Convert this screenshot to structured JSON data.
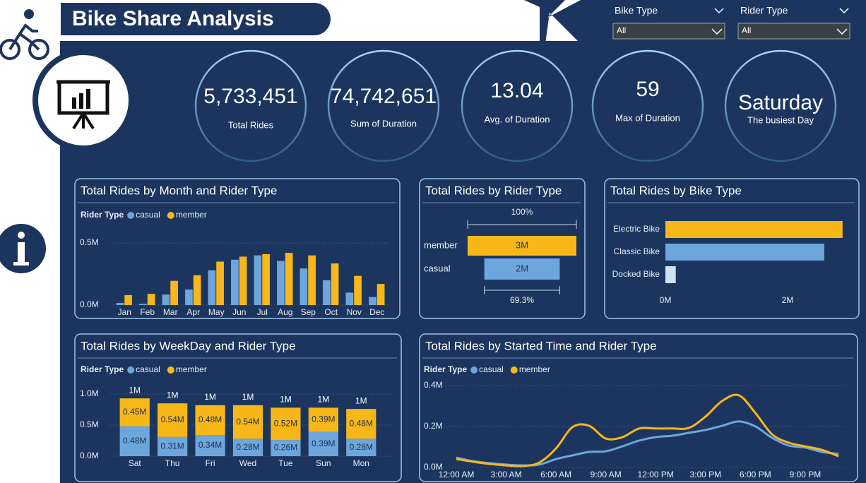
{
  "header": {
    "title": "Bike Share Analysis"
  },
  "filters": [
    {
      "label": "Bike Type",
      "value": "All"
    },
    {
      "label": "Rider Type",
      "value": "All"
    }
  ],
  "kpis": [
    {
      "value": "5,733,451",
      "label": "Total Rides"
    },
    {
      "value": "74,742,651",
      "label": "Sum of Duration"
    },
    {
      "value": "13.04",
      "label": "Avg. of Duration"
    },
    {
      "value": "59",
      "label": "Max of Duration"
    },
    {
      "value": "Saturday",
      "label": "The busiest Day"
    }
  ],
  "chart_data": [
    {
      "type": "bar",
      "title": "Total Rides by Month and Rider Type",
      "legend_title": "Rider Type",
      "categories": [
        "Jan",
        "Feb",
        "Mar",
        "Apr",
        "May",
        "Jun",
        "Jul",
        "Aug",
        "Sep",
        "Oct",
        "Nov",
        "Dec"
      ],
      "series": [
        {
          "name": "casual",
          "color": "#6ca6dc",
          "values": [
            17000,
            10000,
            85000,
            125000,
            280000,
            365000,
            400000,
            355000,
            295000,
            200000,
            100000,
            65000
          ]
        },
        {
          "name": "member",
          "color": "#f8b719",
          "values": [
            80000,
            90000,
            195000,
            240000,
            350000,
            390000,
            410000,
            420000,
            400000,
            335000,
            235000,
            170000
          ]
        }
      ],
      "ylim": [
        0,
        580000
      ],
      "yticks": [
        {
          "value": 0,
          "label": "0.0M"
        },
        {
          "value": 500000,
          "label": "0.5M"
        }
      ],
      "grid": true
    },
    {
      "type": "funnel",
      "title": "Total Rides by Rider Type",
      "categories": [
        "member",
        "casual"
      ],
      "values": [
        3386000,
        2347451
      ],
      "value_labels": [
        "3M",
        "2M"
      ],
      "colors": [
        "#f8b719",
        "#6ca6dc"
      ],
      "top_percent": {
        "value": 100,
        "label": "100%"
      },
      "bottom_percent": {
        "value": 69.3,
        "label": "69.3%"
      }
    },
    {
      "type": "barh",
      "title": "Total Rides by Bike Type",
      "categories": [
        "Electric Bike",
        "Classic Bike",
        "Docked Bike"
      ],
      "values": [
        2900000,
        2600000,
        170000
      ],
      "colors": [
        "#f8b719",
        "#6ca6dc",
        "#cfe2f3"
      ],
      "xlim": [
        0,
        3000000
      ],
      "xticks": [
        {
          "value": 0,
          "label": "0M"
        },
        {
          "value": 2000000,
          "label": "2M"
        }
      ]
    },
    {
      "type": "stacked_bar",
      "title": "Total Rides by WeekDay and Rider Type",
      "legend_title": "Rider Type",
      "categories": [
        "Sat",
        "Thu",
        "Fri",
        "Wed",
        "Tue",
        "Sun",
        "Mon"
      ],
      "series": [
        {
          "name": "casual",
          "color": "#6ca6dc",
          "values": [
            480000,
            310000,
            340000,
            280000,
            260000,
            390000,
            280000
          ],
          "value_labels": [
            "0.48M",
            "0.31M",
            "0.34M",
            "0.28M",
            "0.26M",
            "0.39M",
            "0.28M"
          ]
        },
        {
          "name": "member",
          "color": "#f8b719",
          "values": [
            450000,
            540000,
            480000,
            540000,
            520000,
            390000,
            480000
          ],
          "value_labels": [
            "0.45M",
            "0.54M",
            "0.48M",
            "0.54M",
            "0.52M",
            "0.39M",
            "0.48M"
          ]
        }
      ],
      "total_labels": [
        "1M",
        "1M",
        "1M",
        "1M",
        "1M",
        "1M",
        "1M"
      ],
      "ylim": [
        0,
        1100000
      ],
      "yticks": [
        {
          "value": 0,
          "label": "0.0M"
        },
        {
          "value": 500000,
          "label": "0.5M"
        },
        {
          "value": 1000000,
          "label": "1.0M"
        }
      ],
      "grid": true
    },
    {
      "type": "line",
      "title": "Total Rides by Started Time and Rider Type",
      "legend_title": "Rider Type",
      "categories": [
        "12:00 AM",
        null,
        null,
        "3:00 AM",
        null,
        null,
        "6:00 AM",
        null,
        null,
        "9:00 AM",
        null,
        null,
        "12:00 PM",
        null,
        null,
        "3:00 PM",
        null,
        null,
        "6:00 PM",
        null,
        null,
        "9:00 PM",
        null,
        null
      ],
      "series": [
        {
          "name": "casual",
          "color": "#6ca6dc",
          "values": [
            48000,
            31000,
            21000,
            14000,
            10000,
            14000,
            41000,
            59000,
            76000,
            79000,
            103000,
            131000,
            148000,
            155000,
            169000,
            183000,
            203000,
            224000,
            200000,
            145000,
            107000,
            97000,
            76000,
            66000
          ]
        },
        {
          "name": "member",
          "color": "#f8b719",
          "values": [
            41000,
            28000,
            17000,
            10000,
            7000,
            24000,
            93000,
            197000,
            203000,
            141000,
            148000,
            190000,
            190000,
            190000,
            193000,
            248000,
            324000,
            352000,
            266000,
            162000,
            121000,
            103000,
            86000,
            55000
          ]
        }
      ],
      "ylim": [
        0,
        420000
      ],
      "yticks": [
        {
          "value": 0,
          "label": "0.0M"
        },
        {
          "value": 200000,
          "label": "0.2M"
        },
        {
          "value": 400000,
          "label": "0.4M"
        }
      ],
      "grid": true
    }
  ]
}
